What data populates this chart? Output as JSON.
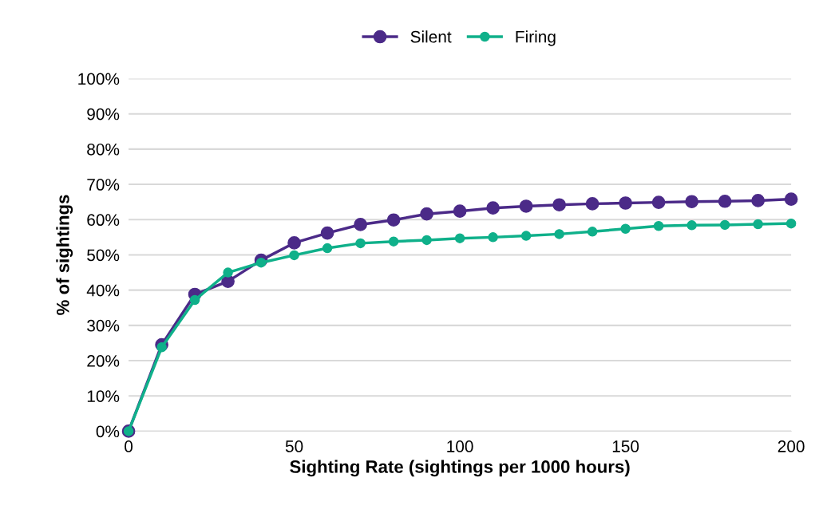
{
  "chart_data": {
    "type": "line",
    "xlabel": "Sighting Rate (sightings per 1000 hours)",
    "ylabel": "% of sightings",
    "x": [
      0,
      10,
      20,
      30,
      40,
      50,
      60,
      70,
      80,
      90,
      100,
      110,
      120,
      130,
      140,
      150,
      160,
      170,
      180,
      190,
      200
    ],
    "series": [
      {
        "name": "Silent",
        "color": "#4b2a88",
        "values": [
          0,
          24.5,
          38.8,
          42.5,
          48.5,
          53.4,
          56.2,
          58.6,
          59.9,
          61.6,
          62.4,
          63.3,
          63.8,
          64.2,
          64.5,
          64.7,
          64.9,
          65.1,
          65.2,
          65.4,
          65.8
        ]
      },
      {
        "name": "Firing",
        "color": "#0fb08a",
        "values": [
          0,
          23.8,
          37.2,
          45,
          47.8,
          49.9,
          51.9,
          53.3,
          53.8,
          54.2,
          54.7,
          55.0,
          55.4,
          55.9,
          56.6,
          57.4,
          58.2,
          58.4,
          58.5,
          58.7,
          58.9
        ]
      }
    ],
    "xlim": [
      0,
      200
    ],
    "xticks": [
      0,
      50,
      100,
      150,
      200
    ],
    "ylim": [
      0,
      100
    ],
    "yticks": [
      {
        "value": 0,
        "label": "0%"
      },
      {
        "value": 10,
        "label": "10%"
      },
      {
        "value": 20,
        "label": "20%"
      },
      {
        "value": 30,
        "label": "30%"
      },
      {
        "value": 40,
        "label": "40%"
      },
      {
        "value": 50,
        "label": "50%"
      },
      {
        "value": 60,
        "label": "60%"
      },
      {
        "value": 70,
        "label": "70%"
      },
      {
        "value": 80,
        "label": "80%"
      },
      {
        "value": 90,
        "label": "90%"
      },
      {
        "value": 100,
        "label": "100%"
      }
    ],
    "grid": "y",
    "legend": "top",
    "marker": "circle",
    "line_style": "solid"
  }
}
